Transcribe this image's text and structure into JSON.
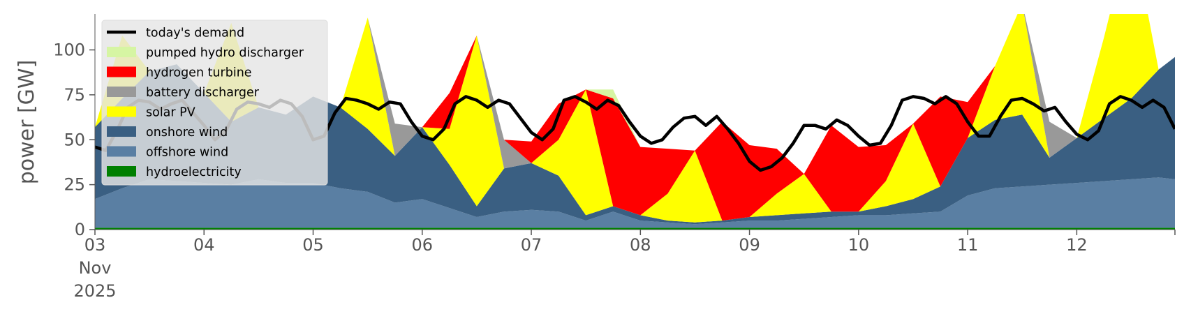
{
  "chart_data": {
    "type": "area",
    "ylabel": "power [GW]",
    "xlabel": "",
    "ylim": [
      0,
      120
    ],
    "yticks": [
      0,
      25,
      50,
      75,
      100
    ],
    "xlim": [
      0,
      9.9
    ],
    "xticks": [
      {
        "day": 0,
        "lines": [
          "03",
          "Nov",
          "2025"
        ]
      },
      {
        "day": 1,
        "lines": [
          "04"
        ]
      },
      {
        "day": 2,
        "lines": [
          "05"
        ]
      },
      {
        "day": 3,
        "lines": [
          "06"
        ]
      },
      {
        "day": 4,
        "lines": [
          "07"
        ]
      },
      {
        "day": 5,
        "lines": [
          "08"
        ]
      },
      {
        "day": 6,
        "lines": [
          "09"
        ]
      },
      {
        "day": 7,
        "lines": [
          "10"
        ]
      },
      {
        "day": 8,
        "lines": [
          "11"
        ]
      },
      {
        "day": 9,
        "lines": [
          "12"
        ]
      }
    ],
    "grid": false,
    "legend_position": "top-left",
    "x": [
      0,
      0.25,
      0.5,
      0.75,
      1,
      1.25,
      1.5,
      1.75,
      2,
      2.25,
      2.5,
      2.75,
      3,
      3.25,
      3.5,
      3.75,
      4,
      4.25,
      4.5,
      4.75,
      5,
      5.25,
      5.5,
      5.75,
      6,
      6.25,
      6.5,
      6.75,
      7,
      7.25,
      7.5,
      7.75,
      8,
      8.25,
      8.5,
      8.75,
      9,
      9.25,
      9.5,
      9.75,
      9.9
    ],
    "series": [
      {
        "name": "hydroelectricity",
        "color": "#008000",
        "values": [
          1,
          1,
          1,
          1,
          1,
          1,
          1,
          1,
          1,
          1,
          1,
          1,
          1,
          1,
          1,
          1,
          1,
          1,
          1,
          1,
          1,
          1,
          1,
          1,
          1,
          1,
          1,
          1,
          1,
          1,
          1,
          1,
          1,
          1,
          1,
          1,
          1,
          1,
          1,
          1,
          1
        ]
      },
      {
        "name": "offshore wind",
        "color": "#5a7fa3",
        "values": [
          16,
          22,
          27,
          26,
          25,
          24,
          27,
          25,
          25,
          22,
          20,
          14,
          16,
          11,
          6,
          9,
          10,
          9,
          4,
          9,
          4,
          3,
          2,
          3,
          4,
          4,
          5,
          6,
          7,
          7,
          8,
          9,
          18,
          22,
          23,
          24,
          25,
          26,
          27,
          28,
          27
        ]
      },
      {
        "name": "onshore wind",
        "color": "#3a5f82",
        "values": [
          40,
          50,
          60,
          65,
          50,
          35,
          40,
          38,
          48,
          45,
          35,
          26,
          40,
          24,
          6,
          24,
          26,
          20,
          3,
          3,
          3,
          1,
          1,
          1,
          2,
          3,
          3,
          3,
          2,
          5,
          8,
          14,
          32,
          38,
          40,
          15,
          25,
          35,
          45,
          60,
          68
        ]
      },
      {
        "name": "solar PV",
        "color": "#ffff00",
        "values": [
          0,
          35,
          0,
          0,
          0,
          55,
          0,
          0,
          0,
          0,
          62,
          0,
          0,
          20,
          95,
          0,
          0,
          20,
          70,
          0,
          0,
          15,
          40,
          0,
          0,
          12,
          22,
          0,
          0,
          14,
          42,
          0,
          0,
          30,
          62,
          0,
          0,
          45,
          95,
          0,
          0
        ]
      },
      {
        "name": "battery discharger",
        "color": "#999999",
        "values": [
          0,
          0,
          0,
          0,
          0,
          0,
          0,
          0,
          0,
          0,
          0,
          18,
          0,
          0,
          0,
          16,
          0,
          0,
          0,
          0,
          0,
          0,
          0,
          0,
          0,
          0,
          0,
          0,
          0,
          0,
          0,
          0,
          0,
          0,
          0,
          20,
          0,
          0,
          0,
          0,
          0
        ]
      },
      {
        "name": "hydrogen turbine",
        "color": "#ff0000",
        "values": [
          0,
          0,
          0,
          0,
          0,
          0,
          0,
          0,
          0,
          0,
          0,
          0,
          0,
          20,
          0,
          0,
          12,
          20,
          0,
          60,
          38,
          25,
          0,
          55,
          40,
          25,
          0,
          48,
          36,
          20,
          0,
          50,
          20,
          0,
          0,
          0,
          0,
          0,
          0,
          0,
          0
        ]
      },
      {
        "name": "pumped hydro discharger",
        "color": "#d6f5a3",
        "values": [
          0,
          0,
          0,
          0,
          0,
          0,
          0,
          0,
          0,
          0,
          0,
          0,
          0,
          0,
          0,
          0,
          0,
          0,
          0,
          5,
          0,
          0,
          0,
          0,
          0,
          0,
          0,
          0,
          0,
          0,
          0,
          0,
          0,
          0,
          0,
          0,
          0,
          0,
          0,
          0,
          0
        ]
      }
    ],
    "demand": {
      "name": "today's demand",
      "color": "#000000",
      "x": [
        0,
        0.1,
        0.2,
        0.3,
        0.4,
        0.5,
        0.6,
        0.7,
        0.8,
        0.9,
        1.0,
        1.1,
        1.2,
        1.3,
        1.4,
        1.5,
        1.6,
        1.7,
        1.8,
        1.9,
        2.0,
        2.1,
        2.2,
        2.3,
        2.4,
        2.5,
        2.6,
        2.7,
        2.8,
        2.9,
        3.0,
        3.1,
        3.2,
        3.3,
        3.4,
        3.5,
        3.6,
        3.7,
        3.8,
        3.9,
        4.0,
        4.1,
        4.2,
        4.3,
        4.4,
        4.5,
        4.6,
        4.7,
        4.8,
        4.9,
        5.0,
        5.1,
        5.2,
        5.3,
        5.4,
        5.5,
        5.6,
        5.7,
        5.8,
        5.9,
        6.0,
        6.1,
        6.2,
        6.3,
        6.4,
        6.5,
        6.6,
        6.7,
        6.8,
        6.9,
        7.0,
        7.1,
        7.2,
        7.3,
        7.4,
        7.5,
        7.6,
        7.7,
        7.8,
        7.9,
        8.0,
        8.1,
        8.2,
        8.3,
        8.4,
        8.5,
        8.6,
        8.7,
        8.8,
        8.9,
        9.0,
        9.1,
        9.2,
        9.3,
        9.4,
        9.5,
        9.6,
        9.7,
        9.8,
        9.9
      ],
      "values": [
        46,
        44,
        55,
        68,
        72,
        71,
        67,
        70,
        72,
        65,
        58,
        50,
        55,
        67,
        71,
        70,
        68,
        72,
        70,
        63,
        50,
        52,
        65,
        73,
        72,
        70,
        67,
        71,
        70,
        60,
        52,
        50,
        56,
        70,
        74,
        72,
        68,
        72,
        70,
        62,
        54,
        50,
        56,
        72,
        74,
        71,
        67,
        72,
        69,
        60,
        52,
        48,
        50,
        57,
        62,
        63,
        58,
        63,
        56,
        48,
        38,
        33,
        35,
        40,
        48,
        58,
        58,
        56,
        61,
        58,
        52,
        47,
        48,
        58,
        72,
        74,
        73,
        70,
        74,
        70,
        60,
        52,
        52,
        63,
        72,
        73,
        70,
        66,
        68,
        60,
        53,
        50,
        55,
        70,
        74,
        72,
        68,
        72,
        68,
        56
      ]
    }
  }
}
